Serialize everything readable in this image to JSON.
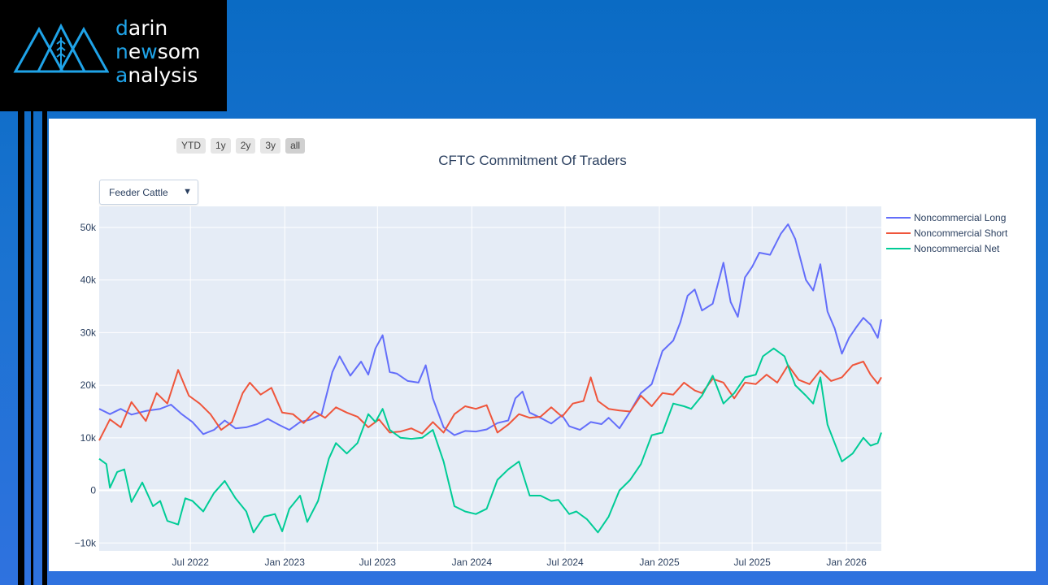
{
  "brand": {
    "line1": {
      "accent": "d",
      "rest": "arin"
    },
    "line2": {
      "accent": "n",
      "mid": "e",
      "accent2": "w",
      "rest": "som"
    },
    "line3": {
      "accent": "a",
      "rest": "nalysis"
    }
  },
  "range_buttons": [
    "YTD",
    "1y",
    "2y",
    "3y",
    "all"
  ],
  "active_range": "all",
  "dropdown": {
    "selected": "Feeder Cattle",
    "arrow": "▼"
  },
  "chart_data": {
    "type": "line",
    "title": "CFTC Commitment Of Traders",
    "xlim": [
      "2022-01-04",
      "2026-03-10"
    ],
    "ylim": [
      -11500,
      54000
    ],
    "x_ticks": [
      "2022-07-01",
      "2023-01-01",
      "2023-07-01",
      "2024-01-01",
      "2024-07-01",
      "2025-01-01",
      "2025-07-01",
      "2026-01-01"
    ],
    "x_tick_labels": [
      "Jul 2022",
      "Jan 2023",
      "Jul 2023",
      "Jan 2024",
      "Jul 2024",
      "Jan 2025",
      "Jul 2025",
      "Jan 2026"
    ],
    "y_ticks": [
      -10000,
      0,
      10000,
      20000,
      30000,
      40000,
      50000
    ],
    "y_tick_labels": [
      "−10k",
      "0",
      "10k",
      "20k",
      "30k",
      "40k",
      "50k"
    ],
    "grid": true,
    "legend_position": "right",
    "series": [
      {
        "name": "Noncommercial Long",
        "color": "#636efa",
        "points": [
          [
            "2022-01-04",
            15500
          ],
          [
            "2022-01-25",
            14500
          ],
          [
            "2022-02-15",
            15500
          ],
          [
            "2022-03-08",
            14400
          ],
          [
            "2022-04-05",
            15100
          ],
          [
            "2022-05-03",
            15500
          ],
          [
            "2022-05-24",
            16300
          ],
          [
            "2022-06-14",
            14500
          ],
          [
            "2022-07-05",
            13000
          ],
          [
            "2022-07-26",
            10700
          ],
          [
            "2022-08-16",
            11500
          ],
          [
            "2022-09-06",
            13300
          ],
          [
            "2022-09-27",
            11800
          ],
          [
            "2022-10-18",
            12000
          ],
          [
            "2022-11-08",
            12600
          ],
          [
            "2022-11-29",
            13600
          ],
          [
            "2022-12-20",
            12500
          ],
          [
            "2023-01-10",
            11500
          ],
          [
            "2023-01-31",
            13000
          ],
          [
            "2023-02-21",
            13500
          ],
          [
            "2023-03-14",
            14500
          ],
          [
            "2023-04-04",
            22500
          ],
          [
            "2023-04-18",
            25500
          ],
          [
            "2023-05-09",
            21800
          ],
          [
            "2023-05-30",
            24500
          ],
          [
            "2023-06-13",
            22000
          ],
          [
            "2023-06-27",
            27000
          ],
          [
            "2023-07-11",
            29500
          ],
          [
            "2023-07-25",
            22500
          ],
          [
            "2023-08-08",
            22200
          ],
          [
            "2023-08-29",
            20800
          ],
          [
            "2023-09-19",
            20500
          ],
          [
            "2023-10-03",
            23800
          ],
          [
            "2023-10-17",
            17500
          ],
          [
            "2023-11-07",
            12000
          ],
          [
            "2023-11-28",
            10500
          ],
          [
            "2023-12-19",
            11300
          ],
          [
            "2024-01-09",
            11200
          ],
          [
            "2024-01-30",
            11600
          ],
          [
            "2024-02-20",
            12800
          ],
          [
            "2024-03-12",
            13300
          ],
          [
            "2024-03-26",
            17500
          ],
          [
            "2024-04-09",
            18800
          ],
          [
            "2024-04-23",
            14800
          ],
          [
            "2024-05-14",
            13800
          ],
          [
            "2024-06-04",
            12700
          ],
          [
            "2024-06-25",
            14300
          ],
          [
            "2024-07-09",
            12200
          ],
          [
            "2024-07-30",
            11500
          ],
          [
            "2024-08-20",
            13000
          ],
          [
            "2024-09-10",
            12600
          ],
          [
            "2024-09-24",
            13800
          ],
          [
            "2024-10-15",
            11800
          ],
          [
            "2024-11-05",
            15000
          ],
          [
            "2024-11-26",
            18500
          ],
          [
            "2024-12-17",
            20200
          ],
          [
            "2025-01-07",
            26500
          ],
          [
            "2025-01-28",
            28500
          ],
          [
            "2025-02-11",
            32000
          ],
          [
            "2025-02-25",
            37000
          ],
          [
            "2025-03-11",
            38200
          ],
          [
            "2025-03-25",
            34200
          ],
          [
            "2025-04-15",
            35500
          ],
          [
            "2025-05-06",
            43300
          ],
          [
            "2025-05-20",
            35800
          ],
          [
            "2025-06-03",
            33000
          ],
          [
            "2025-06-17",
            40500
          ],
          [
            "2025-07-01",
            42500
          ],
          [
            "2025-07-15",
            45200
          ],
          [
            "2025-08-05",
            44800
          ],
          [
            "2025-08-26",
            48800
          ],
          [
            "2025-09-09",
            50600
          ],
          [
            "2025-09-23",
            47800
          ],
          [
            "2025-10-14",
            40000
          ],
          [
            "2025-10-28",
            38000
          ],
          [
            "2025-11-11",
            43000
          ],
          [
            "2025-11-25",
            34000
          ],
          [
            "2025-12-09",
            30800
          ],
          [
            "2025-12-23",
            26000
          ],
          [
            "2026-01-06",
            29000
          ],
          [
            "2026-01-20",
            31000
          ],
          [
            "2026-02-03",
            32800
          ],
          [
            "2026-02-17",
            31500
          ],
          [
            "2026-03-03",
            29000
          ],
          [
            "2026-03-10",
            32500
          ]
        ]
      },
      {
        "name": "Noncommercial Short",
        "color": "#ef553b",
        "points": [
          [
            "2022-01-04",
            9500
          ],
          [
            "2022-01-25",
            13500
          ],
          [
            "2022-02-15",
            12000
          ],
          [
            "2022-03-08",
            16800
          ],
          [
            "2022-04-05",
            13200
          ],
          [
            "2022-04-26",
            18500
          ],
          [
            "2022-05-17",
            16500
          ],
          [
            "2022-06-07",
            22900
          ],
          [
            "2022-06-28",
            18000
          ],
          [
            "2022-07-19",
            16500
          ],
          [
            "2022-08-09",
            14500
          ],
          [
            "2022-08-30",
            11500
          ],
          [
            "2022-09-20",
            13000
          ],
          [
            "2022-10-11",
            18500
          ],
          [
            "2022-10-25",
            20500
          ],
          [
            "2022-11-15",
            18200
          ],
          [
            "2022-12-06",
            19500
          ],
          [
            "2022-12-27",
            14800
          ],
          [
            "2023-01-17",
            14500
          ],
          [
            "2023-02-07",
            12800
          ],
          [
            "2023-02-28",
            15000
          ],
          [
            "2023-03-21",
            13800
          ],
          [
            "2023-04-11",
            15800
          ],
          [
            "2023-05-02",
            14800
          ],
          [
            "2023-05-23",
            14000
          ],
          [
            "2023-06-13",
            12000
          ],
          [
            "2023-07-04",
            13500
          ],
          [
            "2023-07-25",
            11000
          ],
          [
            "2023-08-15",
            11200
          ],
          [
            "2023-09-05",
            11800
          ],
          [
            "2023-09-26",
            10800
          ],
          [
            "2023-10-17",
            13000
          ],
          [
            "2023-11-07",
            11000
          ],
          [
            "2023-11-28",
            14500
          ],
          [
            "2023-12-19",
            16000
          ],
          [
            "2024-01-09",
            15500
          ],
          [
            "2024-01-30",
            16200
          ],
          [
            "2024-02-20",
            11000
          ],
          [
            "2024-03-12",
            12500
          ],
          [
            "2024-04-02",
            14500
          ],
          [
            "2024-04-23",
            13800
          ],
          [
            "2024-05-14",
            14000
          ],
          [
            "2024-06-04",
            15800
          ],
          [
            "2024-06-25",
            14000
          ],
          [
            "2024-07-16",
            16500
          ],
          [
            "2024-08-06",
            17000
          ],
          [
            "2024-08-20",
            21500
          ],
          [
            "2024-09-03",
            17000
          ],
          [
            "2024-09-24",
            15500
          ],
          [
            "2024-10-15",
            15200
          ],
          [
            "2024-11-05",
            15000
          ],
          [
            "2024-11-26",
            18000
          ],
          [
            "2024-12-17",
            16000
          ],
          [
            "2025-01-07",
            18500
          ],
          [
            "2025-01-28",
            18200
          ],
          [
            "2025-02-18",
            20500
          ],
          [
            "2025-03-11",
            19000
          ],
          [
            "2025-03-25",
            18500
          ],
          [
            "2025-04-15",
            21200
          ],
          [
            "2025-05-06",
            20500
          ],
          [
            "2025-05-27",
            17500
          ],
          [
            "2025-06-17",
            20500
          ],
          [
            "2025-07-08",
            20200
          ],
          [
            "2025-07-29",
            22000
          ],
          [
            "2025-08-19",
            20500
          ],
          [
            "2025-09-09",
            23800
          ],
          [
            "2025-09-30",
            21000
          ],
          [
            "2025-10-21",
            20200
          ],
          [
            "2025-11-11",
            22800
          ],
          [
            "2025-12-02",
            20800
          ],
          [
            "2025-12-23",
            21500
          ],
          [
            "2026-01-13",
            23800
          ],
          [
            "2026-02-03",
            24500
          ],
          [
            "2026-02-17",
            22000
          ],
          [
            "2026-03-03",
            20300
          ],
          [
            "2026-03-10",
            21500
          ]
        ]
      },
      {
        "name": "Noncommercial Net",
        "color": "#00cc96",
        "points": [
          [
            "2022-01-04",
            6000
          ],
          [
            "2022-01-18",
            5000
          ],
          [
            "2022-01-25",
            500
          ],
          [
            "2022-02-08",
            3500
          ],
          [
            "2022-02-22",
            4000
          ],
          [
            "2022-03-08",
            -2200
          ],
          [
            "2022-03-29",
            1500
          ],
          [
            "2022-04-19",
            -3000
          ],
          [
            "2022-05-03",
            -2000
          ],
          [
            "2022-05-17",
            -5800
          ],
          [
            "2022-06-07",
            -6500
          ],
          [
            "2022-06-21",
            -1500
          ],
          [
            "2022-07-05",
            -2000
          ],
          [
            "2022-07-26",
            -4000
          ],
          [
            "2022-08-16",
            -500
          ],
          [
            "2022-09-06",
            1800
          ],
          [
            "2022-09-27",
            -1500
          ],
          [
            "2022-10-18",
            -4000
          ],
          [
            "2022-11-01",
            -8000
          ],
          [
            "2022-11-22",
            -5000
          ],
          [
            "2022-12-13",
            -4500
          ],
          [
            "2022-12-27",
            -7800
          ],
          [
            "2023-01-10",
            -3500
          ],
          [
            "2023-01-31",
            -1000
          ],
          [
            "2023-02-14",
            -6000
          ],
          [
            "2023-03-07",
            -2000
          ],
          [
            "2023-03-28",
            6000
          ],
          [
            "2023-04-11",
            9000
          ],
          [
            "2023-05-02",
            7000
          ],
          [
            "2023-05-23",
            9000
          ],
          [
            "2023-06-13",
            14500
          ],
          [
            "2023-06-27",
            13000
          ],
          [
            "2023-07-11",
            15500
          ],
          [
            "2023-07-25",
            11500
          ],
          [
            "2023-08-15",
            10000
          ],
          [
            "2023-09-05",
            9800
          ],
          [
            "2023-09-26",
            10000
          ],
          [
            "2023-10-17",
            11500
          ],
          [
            "2023-11-07",
            5500
          ],
          [
            "2023-11-28",
            -3000
          ],
          [
            "2023-12-19",
            -4000
          ],
          [
            "2024-01-09",
            -4500
          ],
          [
            "2024-01-30",
            -3500
          ],
          [
            "2024-02-20",
            2000
          ],
          [
            "2024-03-12",
            4000
          ],
          [
            "2024-04-02",
            5500
          ],
          [
            "2024-04-23",
            -1000
          ],
          [
            "2024-05-14",
            -1000
          ],
          [
            "2024-06-04",
            -2000
          ],
          [
            "2024-06-18",
            -1800
          ],
          [
            "2024-07-09",
            -4500
          ],
          [
            "2024-07-23",
            -4000
          ],
          [
            "2024-08-13",
            -5500
          ],
          [
            "2024-09-03",
            -8000
          ],
          [
            "2024-09-24",
            -5000
          ],
          [
            "2024-10-15",
            0
          ],
          [
            "2024-11-05",
            2000
          ],
          [
            "2024-11-26",
            5000
          ],
          [
            "2024-12-17",
            10500
          ],
          [
            "2025-01-07",
            11000
          ],
          [
            "2025-01-28",
            16500
          ],
          [
            "2025-02-18",
            16000
          ],
          [
            "2025-03-04",
            15500
          ],
          [
            "2025-03-25",
            18000
          ],
          [
            "2025-04-15",
            21800
          ],
          [
            "2025-05-06",
            16500
          ],
          [
            "2025-05-27",
            18500
          ],
          [
            "2025-06-17",
            21500
          ],
          [
            "2025-07-08",
            22000
          ],
          [
            "2025-07-22",
            25500
          ],
          [
            "2025-08-12",
            27000
          ],
          [
            "2025-09-02",
            25500
          ],
          [
            "2025-09-23",
            20000
          ],
          [
            "2025-10-14",
            18000
          ],
          [
            "2025-10-28",
            16500
          ],
          [
            "2025-11-11",
            21500
          ],
          [
            "2025-11-25",
            12500
          ],
          [
            "2025-12-09",
            9000
          ],
          [
            "2025-12-23",
            5500
          ],
          [
            "2026-01-13",
            7000
          ],
          [
            "2026-02-03",
            10000
          ],
          [
            "2026-02-17",
            8500
          ],
          [
            "2026-03-03",
            9000
          ],
          [
            "2026-03-10",
            11000
          ]
        ]
      }
    ]
  }
}
